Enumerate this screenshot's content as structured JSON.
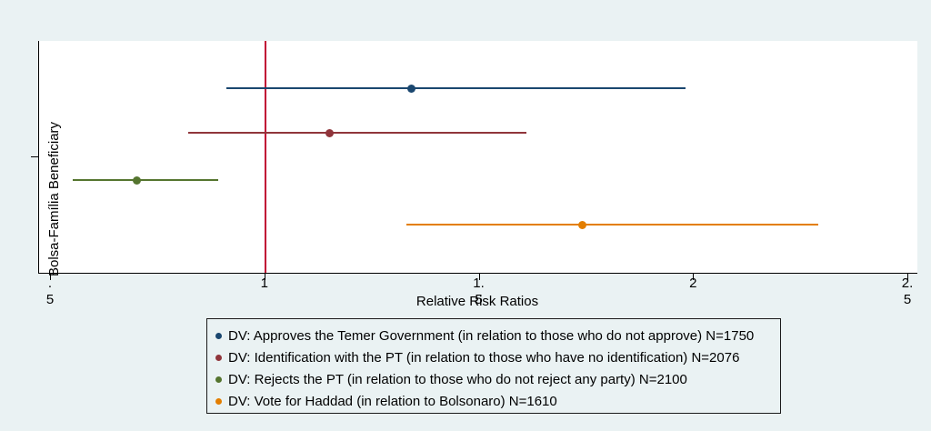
{
  "colors": {
    "background": "#EAF2F3",
    "plot_background": "#FFFFFF",
    "axis": "#000000",
    "reference_line": "#C10534",
    "legend_border": "#1A1A1A",
    "text": "#000000"
  },
  "chart_data": {
    "type": "scatter",
    "subtype": "horizontal-coefficient-plot-with-ci",
    "title": "",
    "xlabel": "Relative Risk Ratios",
    "ylabel": "Bolsa-Família Beneficiary",
    "category": "Bolsa-Família Beneficiary",
    "xlim": [
      0.4724,
      2.5212
    ],
    "grid": false,
    "legend_position": "bottom-outside",
    "reference_line_x": 1,
    "x_ticks": [
      {
        "value": 0.5,
        "label": ".\n5"
      },
      {
        "value": 1,
        "label": "1"
      },
      {
        "value": 1.5,
        "label": "1.\n5"
      },
      {
        "value": 2,
        "label": "2"
      },
      {
        "value": 2.5,
        "label": "2.\n5"
      }
    ],
    "series": [
      {
        "name": "DV: Approves the Temer Government (in relation to those who do not approve) N=1750",
        "color": "#1A476F",
        "estimate": 1.34,
        "ci_low": 0.91,
        "ci_high": 1.98
      },
      {
        "name": "DV: Identification with the PT (in relation to those who have no identification) N=2076",
        "color": "#90353B",
        "estimate": 1.15,
        "ci_low": 0.82,
        "ci_high": 1.61
      },
      {
        "name": "DV: Rejects the PT (in relation to those who do not reject any party) N=2100",
        "color": "#55752F",
        "estimate": 0.7,
        "ci_low": 0.55,
        "ci_high": 0.89
      },
      {
        "name": "DV: Vote for Haddad (in relation to Bolsonaro) N=1610",
        "color": "#E37E00",
        "estimate": 1.74,
        "ci_low": 1.33,
        "ci_high": 2.29
      }
    ]
  }
}
